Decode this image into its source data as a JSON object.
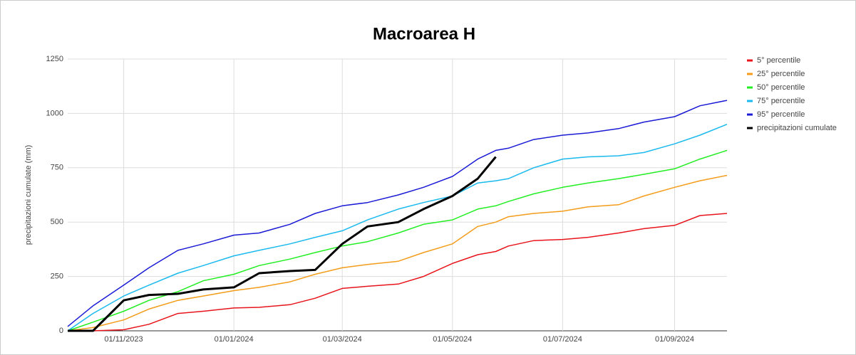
{
  "chart_data": {
    "type": "line",
    "title": "Macroarea H",
    "y_label": "precipitazioni cumulate (mm)",
    "x": [
      "01/10/2023",
      "15/10/2023",
      "01/11/2023",
      "15/11/2023",
      "01/12/2023",
      "15/12/2023",
      "01/01/2024",
      "15/01/2024",
      "01/02/2024",
      "15/02/2024",
      "01/03/2024",
      "15/03/2024",
      "01/04/2024",
      "15/04/2024",
      "01/05/2024",
      "15/05/2024",
      "25/05/2024",
      "01/06/2024",
      "15/06/2024",
      "01/07/2024",
      "15/07/2024",
      "01/08/2024",
      "15/08/2024",
      "01/09/2024",
      "15/09/2024",
      "30/09/2024"
    ],
    "xlim": [
      "01/10/2023",
      "30/09/2024"
    ],
    "xticks": [
      "01/11/2023",
      "01/01/2024",
      "01/03/2024",
      "01/05/2024",
      "01/07/2024",
      "01/09/2024"
    ],
    "ylim": [
      0,
      1250
    ],
    "yticks": [
      0,
      250,
      500,
      750,
      1000,
      1250
    ],
    "grid": true,
    "legend": "right",
    "series": [
      {
        "name": "5° percentile",
        "color": "#e8141b",
        "values": [
          0,
          0,
          5,
          30,
          80,
          90,
          105,
          108,
          120,
          150,
          195,
          205,
          215,
          250,
          310,
          350,
          365,
          390,
          415,
          420,
          430,
          450,
          470,
          485,
          530,
          540
        ]
      },
      {
        "name": "25° percentile",
        "color": "#f39c1a",
        "values": [
          0,
          15,
          50,
          100,
          140,
          160,
          185,
          200,
          225,
          260,
          290,
          305,
          320,
          360,
          400,
          480,
          500,
          525,
          540,
          550,
          570,
          580,
          620,
          660,
          690,
          715
        ]
      },
      {
        "name": "50° percentile",
        "color": "#22ee22",
        "values": [
          0,
          40,
          90,
          140,
          180,
          230,
          260,
          300,
          330,
          360,
          390,
          410,
          450,
          490,
          510,
          560,
          575,
          595,
          630,
          660,
          680,
          700,
          720,
          745,
          790,
          830
        ]
      },
      {
        "name": "75° percentile",
        "color": "#1ab9ee",
        "values": [
          0,
          80,
          160,
          210,
          265,
          300,
          345,
          370,
          400,
          430,
          460,
          510,
          560,
          590,
          620,
          680,
          690,
          700,
          750,
          790,
          800,
          805,
          820,
          860,
          900,
          950
        ]
      },
      {
        "name": "95° percentile",
        "color": "#1b1bd6",
        "values": [
          20,
          115,
          210,
          290,
          370,
          400,
          440,
          450,
          490,
          540,
          575,
          590,
          625,
          660,
          710,
          790,
          830,
          840,
          880,
          900,
          910,
          930,
          960,
          985,
          1035,
          1060
        ]
      },
      {
        "name": "precipitazioni cumulate",
        "color": "#000000",
        "values": [
          0,
          0,
          140,
          165,
          170,
          190,
          200,
          265,
          275,
          280,
          400,
          480,
          500,
          560,
          620,
          700,
          800,
          null,
          null,
          null,
          null,
          null,
          null,
          null,
          null,
          null
        ]
      }
    ]
  }
}
